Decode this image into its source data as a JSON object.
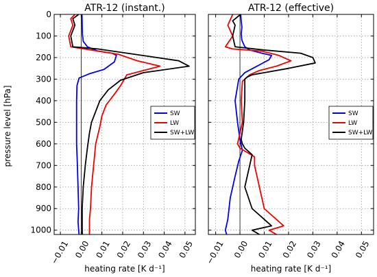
{
  "figure": {
    "ylabel": "pressure level [hPa]"
  },
  "chart_data": [
    {
      "type": "line",
      "title": "ATR-12 (instant.)",
      "xlabel": "heating rate [K d⁻¹]",
      "ylabel": "pressure level [hPa]",
      "xlim": [
        -0.013,
        0.055
      ],
      "ylim": [
        1020,
        0
      ],
      "xticks": [
        -0.01,
        0.0,
        0.01,
        0.02,
        0.03,
        0.04,
        0.05
      ],
      "xtick_labels": [
        "−0.01",
        "0.00",
        "0.01",
        "0.02",
        "0.03",
        "0.04",
        "0.05"
      ],
      "yticks": [
        0,
        100,
        200,
        300,
        400,
        500,
        600,
        700,
        800,
        900,
        1000
      ],
      "ytick_labels": [
        "0",
        "100",
        "200",
        "300",
        "400",
        "500",
        "600",
        "700",
        "800",
        "900",
        "1000"
      ],
      "grid": true,
      "legend": "right",
      "series": [
        {
          "name": "SW",
          "color": "#0000ee",
          "points": [
            [
              0.0004,
              0
            ],
            [
              0.0005,
              50
            ],
            [
              0.0006,
              90
            ],
            [
              0.001,
              125
            ],
            [
              0.003,
              150
            ],
            [
              0.008,
              170
            ],
            [
              0.015,
              180
            ],
            [
              0.017,
              190
            ],
            [
              0.016,
              220
            ],
            [
              0.011,
              255
            ],
            [
              0.004,
              275
            ],
            [
              -0.001,
              295
            ],
            [
              -0.002,
              330
            ],
            [
              -0.0022,
              400
            ],
            [
              -0.0022,
              500
            ],
            [
              -0.0022,
              600
            ],
            [
              -0.0018,
              700
            ],
            [
              -0.0015,
              800
            ],
            [
              -0.0012,
              900
            ],
            [
              -0.0015,
              960
            ],
            [
              -0.0012,
              1000
            ],
            [
              -0.001,
              1020
            ]
          ]
        },
        {
          "name": "LW",
          "color": "#ee0000",
          "points": [
            [
              -0.003,
              0
            ],
            [
              -0.005,
              20
            ],
            [
              -0.004,
              50
            ],
            [
              -0.006,
              100
            ],
            [
              -0.005,
              150
            ],
            [
              0.005,
              165
            ],
            [
              0.018,
              185
            ],
            [
              0.027,
              215
            ],
            [
              0.038,
              240
            ],
            [
              0.022,
              280
            ],
            [
              0.019,
              330
            ],
            [
              0.016,
              370
            ],
            [
              0.012,
              420
            ],
            [
              0.01,
              470
            ],
            [
              0.009,
              520
            ],
            [
              0.007,
              600
            ],
            [
              0.006,
              700
            ],
            [
              0.005,
              800
            ],
            [
              0.0045,
              900
            ],
            [
              0.004,
              950
            ],
            [
              0.004,
              1000
            ],
            [
              0.004,
              1020
            ]
          ]
        },
        {
          "name": "SW+LW",
          "color": "#000000",
          "points": [
            [
              -0.0012,
              0
            ],
            [
              -0.004,
              20
            ],
            [
              -0.003,
              50
            ],
            [
              -0.005,
              100
            ],
            [
              -0.004,
              150
            ],
            [
              0.008,
              160
            ],
            [
              0.033,
              195
            ],
            [
              0.047,
              215
            ],
            [
              0.052,
              240
            ],
            [
              0.03,
              270
            ],
            [
              0.019,
              305
            ],
            [
              0.013,
              350
            ],
            [
              0.009,
              400
            ],
            [
              0.007,
              450
            ],
            [
              0.005,
              500
            ],
            [
              0.004,
              550
            ],
            [
              0.003,
              620
            ],
            [
              0.002,
              700
            ],
            [
              0.001,
              800
            ],
            [
              0.0005,
              900
            ],
            [
              0.0005,
              1000
            ],
            [
              0.0006,
              1020
            ]
          ]
        }
      ]
    },
    {
      "type": "line",
      "title": "ATR-12 (effective)",
      "xlabel": "heating rate [K d⁻¹]",
      "xlim": [
        -0.013,
        0.055
      ],
      "ylim": [
        1020,
        0
      ],
      "xticks": [
        -0.01,
        0.0,
        0.01,
        0.02,
        0.03,
        0.04,
        0.05
      ],
      "xtick_labels": [
        "−0.01",
        "0.00",
        "0.01",
        "0.02",
        "0.03",
        "0.04",
        "0.05"
      ],
      "yticks": [
        0,
        100,
        200,
        300,
        400,
        500,
        600,
        700,
        800,
        900,
        1000
      ],
      "grid": true,
      "legend": "right",
      "series": [
        {
          "name": "SW",
          "color": "#0000ee",
          "points": [
            [
              0.0003,
              0
            ],
            [
              0.0005,
              30
            ],
            [
              0.0008,
              60
            ],
            [
              0.0005,
              90
            ],
            [
              0.0008,
              120
            ],
            [
              0.002,
              150
            ],
            [
              0.004,
              165
            ],
            [
              0.009,
              180
            ],
            [
              0.013,
              190
            ],
            [
              0.012,
              210
            ],
            [
              0.007,
              240
            ],
            [
              0.002,
              270
            ],
            [
              -0.0005,
              300
            ],
            [
              -0.002,
              400
            ],
            [
              -0.001,
              500
            ],
            [
              0.0,
              580
            ],
            [
              0.001,
              630
            ],
            [
              -0.0005,
              680
            ],
            [
              -0.002,
              750
            ],
            [
              -0.004,
              850
            ],
            [
              -0.005,
              950
            ],
            [
              -0.006,
              1000
            ],
            [
              -0.0055,
              1020
            ]
          ]
        },
        {
          "name": "LW",
          "color": "#ee0000",
          "points": [
            [
              -0.003,
              0
            ],
            [
              -0.005,
              50
            ],
            [
              -0.003,
              100
            ],
            [
              -0.006,
              150
            ],
            [
              -0.003,
              160
            ],
            [
              0.009,
              170
            ],
            [
              0.016,
              190
            ],
            [
              0.021,
              215
            ],
            [
              0.015,
              240
            ],
            [
              0.008,
              260
            ],
            [
              0.004,
              280
            ],
            [
              0.001,
              310
            ],
            [
              0.0005,
              400
            ],
            [
              0.001,
              500
            ],
            [
              -0.001,
              600
            ],
            [
              0.0,
              620
            ],
            [
              0.003,
              640
            ],
            [
              0.006,
              660
            ],
            [
              0.006,
              700
            ],
            [
              0.008,
              800
            ],
            [
              0.01,
              900
            ],
            [
              0.018,
              980
            ],
            [
              0.012,
              1000
            ],
            [
              0.015,
              1020
            ]
          ]
        },
        {
          "name": "SW+LW",
          "color": "#000000",
          "points": [
            [
              0.0002,
              0
            ],
            [
              -0.003,
              30
            ],
            [
              -0.002,
              50
            ],
            [
              -0.003,
              100
            ],
            [
              -0.002,
              150
            ],
            [
              0.01,
              165
            ],
            [
              0.025,
              180
            ],
            [
              0.03,
              200
            ],
            [
              0.031,
              225
            ],
            [
              0.02,
              250
            ],
            [
              0.01,
              270
            ],
            [
              0.005,
              280
            ],
            [
              0.003,
              290
            ],
            [
              0.002,
              300
            ],
            [
              0.002,
              400
            ],
            [
              0.0015,
              500
            ],
            [
              0.0005,
              580
            ],
            [
              0.001,
              600
            ],
            [
              0.002,
              620
            ],
            [
              0.005,
              650
            ],
            [
              0.004,
              700
            ],
            [
              0.002,
              800
            ],
            [
              0.005,
              900
            ],
            [
              0.01,
              950
            ],
            [
              0.013,
              980
            ],
            [
              0.005,
              1000
            ],
            [
              0.008,
              1020
            ]
          ]
        }
      ]
    }
  ]
}
